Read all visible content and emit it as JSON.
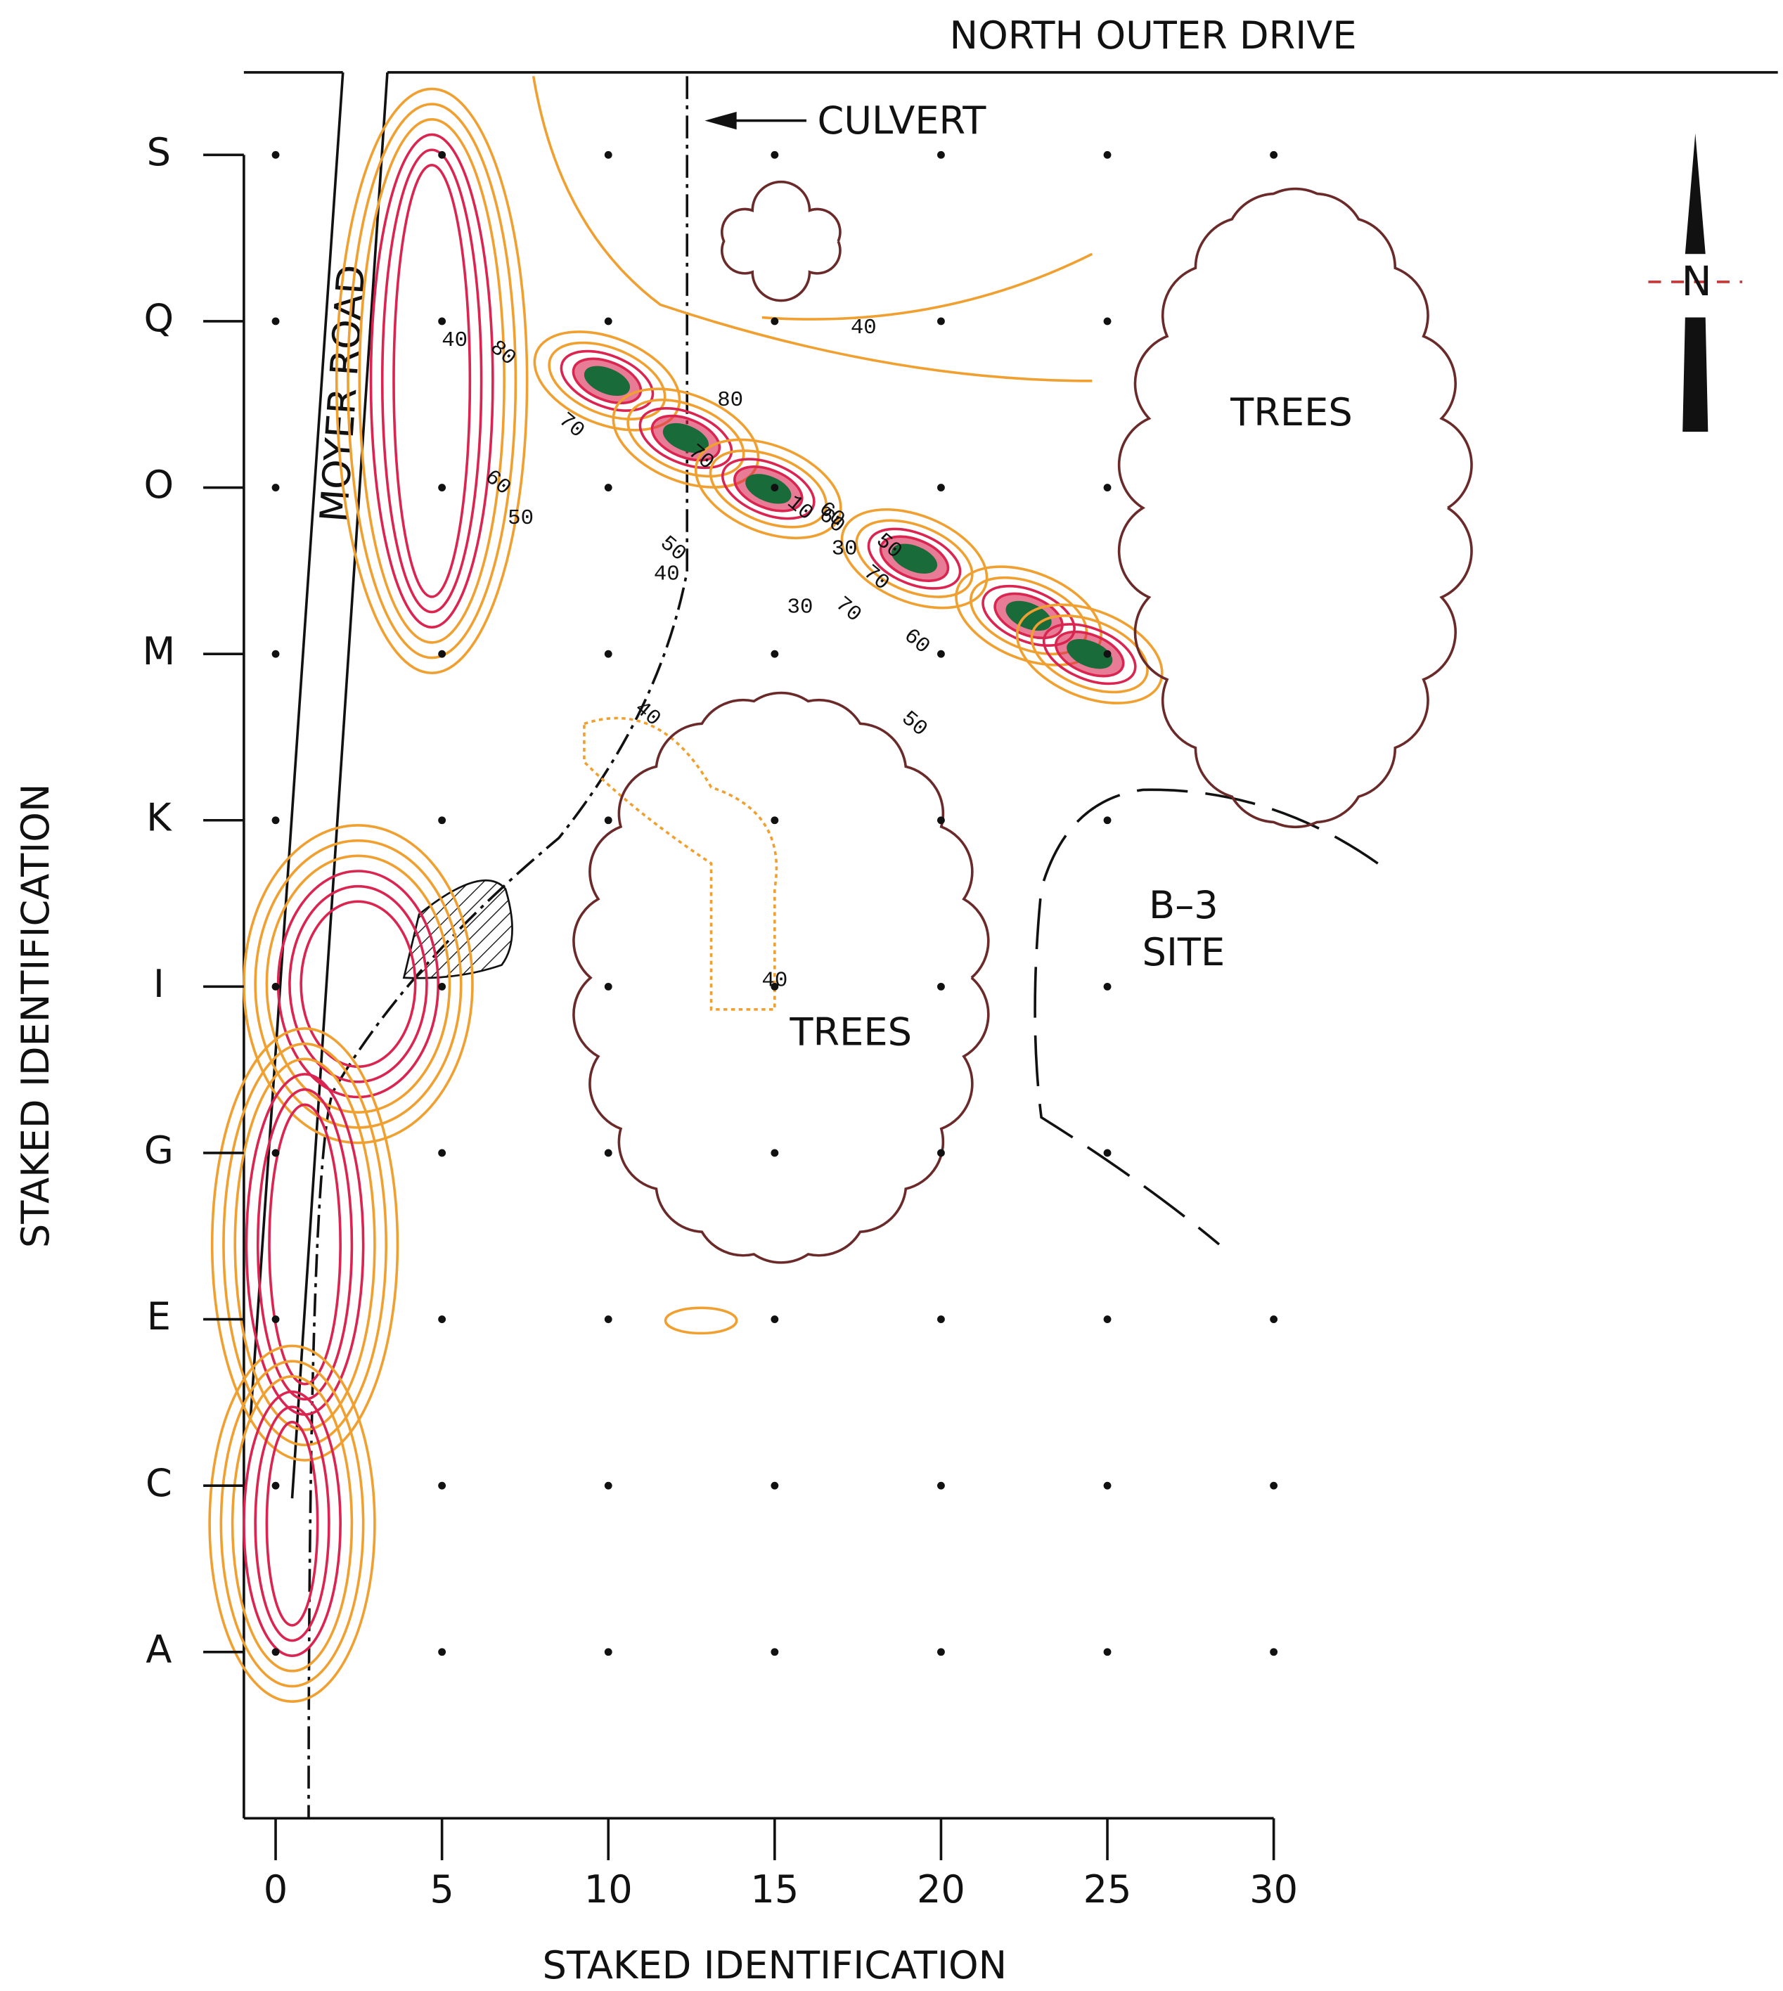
{
  "map": {
    "road_top": "NORTH OUTER DRIVE",
    "culvert": "CULVERT",
    "road_left": "MOYER ROAD",
    "north": "N",
    "areas": [
      "TREES",
      "TREES",
      "B–3",
      "SITE"
    ]
  },
  "x_axis": {
    "label": "STAKED IDENTIFICATION",
    "ticks": [
      0,
      5,
      10,
      15,
      20,
      25,
      30
    ]
  },
  "y_axis": {
    "label": "STAKED IDENTIFICATION",
    "ticks": [
      "S",
      "Q",
      "O",
      "M",
      "K",
      "I",
      "G",
      "E",
      "C",
      "A"
    ]
  },
  "contour_labels": [
    40,
    80,
    70,
    80,
    70,
    60,
    50,
    60,
    50,
    40,
    10,
    60,
    30,
    50,
    70,
    30,
    70,
    60,
    40,
    50,
    40,
    40
  ]
}
